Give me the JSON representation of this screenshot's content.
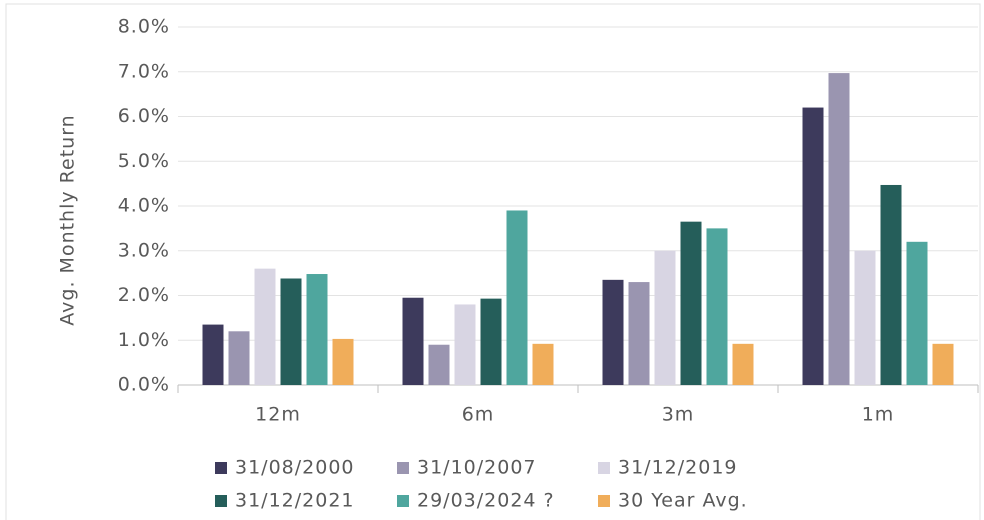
{
  "chart_data": {
    "type": "bar",
    "y_axis_label": "Avg. Monthly Return",
    "categories": [
      "12m",
      "6m",
      "3m",
      "1m"
    ],
    "series": [
      {
        "name": "31/08/2000",
        "color": "#3d3a5c",
        "values": [
          1.35,
          1.95,
          2.35,
          6.2
        ]
      },
      {
        "name": "31/10/2007",
        "color": "#9a95b0",
        "values": [
          1.2,
          0.9,
          2.3,
          6.97
        ]
      },
      {
        "name": "31/12/2019",
        "color": "#d8d5e3",
        "values": [
          2.6,
          1.8,
          3.0,
          3.0
        ]
      },
      {
        "name": "31/12/2021",
        "color": "#255e5a",
        "values": [
          2.38,
          1.93,
          3.65,
          4.47
        ]
      },
      {
        "name": "29/03/2024 ?",
        "color": "#4fa69e",
        "values": [
          2.48,
          3.9,
          3.5,
          3.2
        ]
      },
      {
        "name": "30 Year Avg.",
        "color": "#f0ad5a",
        "values": [
          1.03,
          0.92,
          0.92,
          0.92
        ]
      }
    ],
    "ylim": [
      0,
      8
    ],
    "yticks": [
      {
        "value": 0,
        "label": "0.0%"
      },
      {
        "value": 1,
        "label": "1.0%"
      },
      {
        "value": 2,
        "label": "2.0%"
      },
      {
        "value": 3,
        "label": "3.0%"
      },
      {
        "value": 4,
        "label": "4.0%"
      },
      {
        "value": 5,
        "label": "5.0%"
      },
      {
        "value": 6,
        "label": "6.0%"
      },
      {
        "value": 7,
        "label": "7.0%"
      },
      {
        "value": 8,
        "label": "8.0%"
      }
    ],
    "grid": true,
    "legend": "bottom"
  }
}
